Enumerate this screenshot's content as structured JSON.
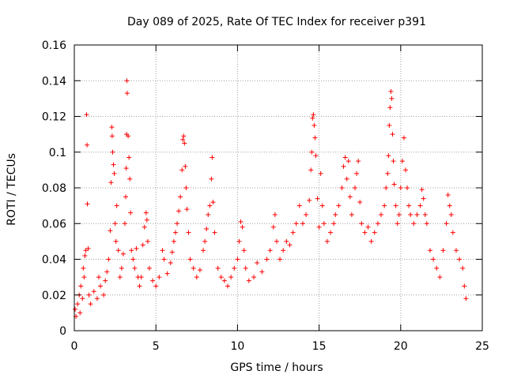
{
  "chart_data": {
    "type": "scatter",
    "title": "Day 089 of 2025, Rate Of TEC Index for receiver p391",
    "xlabel": "GPS time / hours",
    "ylabel": "ROTI / TECUs",
    "xlim": [
      0,
      25
    ],
    "ylim": [
      0,
      0.16
    ],
    "xticks": [
      0,
      5,
      10,
      15,
      20,
      25
    ],
    "yticks": [
      0,
      0.02,
      0.04,
      0.06,
      0.08,
      0.1,
      0.12,
      0.14,
      0.16
    ],
    "xtick_labels": [
      "0",
      "5",
      "10",
      "15",
      "20",
      "25"
    ],
    "ytick_labels": [
      "0",
      "0.02",
      "0.04",
      "0.06",
      "0.08",
      "0.1",
      "0.12",
      "0.14",
      "0.16"
    ],
    "grid": true,
    "marker": "+",
    "color": "#ff0000",
    "series": [
      {
        "points": [
          [
            0.05,
            0.012
          ],
          [
            0.1,
            0.008
          ],
          [
            0.2,
            0.015
          ],
          [
            0.3,
            0.02
          ],
          [
            0.35,
            0.01
          ],
          [
            0.4,
            0.025
          ],
          [
            0.5,
            0.018
          ],
          [
            0.55,
            0.035
          ],
          [
            0.6,
            0.03
          ],
          [
            0.65,
            0.042
          ],
          [
            0.7,
            0.045
          ],
          [
            0.75,
            0.121
          ],
          [
            0.78,
            0.104
          ],
          [
            0.8,
            0.071
          ],
          [
            0.85,
            0.046
          ],
          [
            0.9,
            0.02
          ],
          [
            1.0,
            0.015
          ],
          [
            1.2,
            0.022
          ],
          [
            1.4,
            0.018
          ],
          [
            1.5,
            0.03
          ],
          [
            1.6,
            0.025
          ],
          [
            1.8,
            0.02
          ],
          [
            1.9,
            0.028
          ],
          [
            2.0,
            0.033
          ],
          [
            2.1,
            0.04
          ],
          [
            2.2,
            0.056
          ],
          [
            2.25,
            0.083
          ],
          [
            2.3,
            0.114
          ],
          [
            2.32,
            0.109
          ],
          [
            2.35,
            0.1
          ],
          [
            2.4,
            0.093
          ],
          [
            2.45,
            0.088
          ],
          [
            2.5,
            0.06
          ],
          [
            2.55,
            0.05
          ],
          [
            2.6,
            0.07
          ],
          [
            2.7,
            0.045
          ],
          [
            2.8,
            0.03
          ],
          [
            2.9,
            0.035
          ],
          [
            3.0,
            0.043
          ],
          [
            3.1,
            0.06
          ],
          [
            3.15,
            0.075
          ],
          [
            3.18,
            0.091
          ],
          [
            3.2,
            0.11
          ],
          [
            3.22,
            0.14
          ],
          [
            3.24,
            0.133
          ],
          [
            3.3,
            0.109
          ],
          [
            3.35,
            0.097
          ],
          [
            3.4,
            0.085
          ],
          [
            3.45,
            0.066
          ],
          [
            3.5,
            0.045
          ],
          [
            3.6,
            0.04
          ],
          [
            3.7,
            0.035
          ],
          [
            3.8,
            0.046
          ],
          [
            3.9,
            0.03
          ],
          [
            4.0,
            0.025
          ],
          [
            4.1,
            0.03
          ],
          [
            4.2,
            0.048
          ],
          [
            4.3,
            0.058
          ],
          [
            4.4,
            0.066
          ],
          [
            4.45,
            0.062
          ],
          [
            4.5,
            0.05
          ],
          [
            4.6,
            0.035
          ],
          [
            4.8,
            0.028
          ],
          [
            5.0,
            0.025
          ],
          [
            5.2,
            0.03
          ],
          [
            5.4,
            0.045
          ],
          [
            5.5,
            0.04
          ],
          [
            5.7,
            0.032
          ],
          [
            5.9,
            0.038
          ],
          [
            6.0,
            0.044
          ],
          [
            6.1,
            0.05
          ],
          [
            6.2,
            0.055
          ],
          [
            6.3,
            0.06
          ],
          [
            6.4,
            0.067
          ],
          [
            6.5,
            0.075
          ],
          [
            6.6,
            0.09
          ],
          [
            6.65,
            0.107
          ],
          [
            6.7,
            0.109
          ],
          [
            6.75,
            0.105
          ],
          [
            6.8,
            0.092
          ],
          [
            6.85,
            0.08
          ],
          [
            6.9,
            0.068
          ],
          [
            7.0,
            0.055
          ],
          [
            7.1,
            0.04
          ],
          [
            7.3,
            0.035
          ],
          [
            7.5,
            0.03
          ],
          [
            7.7,
            0.034
          ],
          [
            7.9,
            0.045
          ],
          [
            8.0,
            0.05
          ],
          [
            8.1,
            0.057
          ],
          [
            8.2,
            0.065
          ],
          [
            8.3,
            0.07
          ],
          [
            8.4,
            0.085
          ],
          [
            8.45,
            0.097
          ],
          [
            8.5,
            0.072
          ],
          [
            8.6,
            0.055
          ],
          [
            8.8,
            0.035
          ],
          [
            9.0,
            0.03
          ],
          [
            9.2,
            0.028
          ],
          [
            9.4,
            0.025
          ],
          [
            9.6,
            0.03
          ],
          [
            9.8,
            0.035
          ],
          [
            10.0,
            0.04
          ],
          [
            10.1,
            0.05
          ],
          [
            10.2,
            0.061
          ],
          [
            10.3,
            0.058
          ],
          [
            10.4,
            0.045
          ],
          [
            10.5,
            0.035
          ],
          [
            10.7,
            0.028
          ],
          [
            11.0,
            0.03
          ],
          [
            11.2,
            0.038
          ],
          [
            11.5,
            0.033
          ],
          [
            11.8,
            0.04
          ],
          [
            12.0,
            0.045
          ],
          [
            12.2,
            0.058
          ],
          [
            12.3,
            0.065
          ],
          [
            12.4,
            0.05
          ],
          [
            12.6,
            0.04
          ],
          [
            12.8,
            0.045
          ],
          [
            13.0,
            0.05
          ],
          [
            13.2,
            0.048
          ],
          [
            13.4,
            0.055
          ],
          [
            13.6,
            0.06
          ],
          [
            13.8,
            0.07
          ],
          [
            14.0,
            0.06
          ],
          [
            14.2,
            0.065
          ],
          [
            14.4,
            0.073
          ],
          [
            14.5,
            0.09
          ],
          [
            14.55,
            0.1
          ],
          [
            14.6,
            0.119
          ],
          [
            14.65,
            0.121
          ],
          [
            14.7,
            0.115
          ],
          [
            14.75,
            0.108
          ],
          [
            14.8,
            0.098
          ],
          [
            14.9,
            0.074
          ],
          [
            15.0,
            0.058
          ],
          [
            15.1,
            0.088
          ],
          [
            15.2,
            0.07
          ],
          [
            15.3,
            0.06
          ],
          [
            15.5,
            0.05
          ],
          [
            15.7,
            0.055
          ],
          [
            15.9,
            0.06
          ],
          [
            16.0,
            0.065
          ],
          [
            16.2,
            0.07
          ],
          [
            16.4,
            0.08
          ],
          [
            16.5,
            0.092
          ],
          [
            16.6,
            0.097
          ],
          [
            16.7,
            0.085
          ],
          [
            16.8,
            0.095
          ],
          [
            16.9,
            0.075
          ],
          [
            17.0,
            0.065
          ],
          [
            17.2,
            0.08
          ],
          [
            17.3,
            0.088
          ],
          [
            17.4,
            0.095
          ],
          [
            17.5,
            0.072
          ],
          [
            17.6,
            0.06
          ],
          [
            17.8,
            0.055
          ],
          [
            18.0,
            0.058
          ],
          [
            18.2,
            0.05
          ],
          [
            18.4,
            0.055
          ],
          [
            18.6,
            0.06
          ],
          [
            18.8,
            0.065
          ],
          [
            19.0,
            0.07
          ],
          [
            19.1,
            0.08
          ],
          [
            19.2,
            0.088
          ],
          [
            19.25,
            0.098
          ],
          [
            19.3,
            0.115
          ],
          [
            19.35,
            0.125
          ],
          [
            19.4,
            0.134
          ],
          [
            19.45,
            0.13
          ],
          [
            19.5,
            0.11
          ],
          [
            19.55,
            0.095
          ],
          [
            19.6,
            0.082
          ],
          [
            19.7,
            0.07
          ],
          [
            19.8,
            0.06
          ],
          [
            19.9,
            0.065
          ],
          [
            20.0,
            0.08
          ],
          [
            20.1,
            0.095
          ],
          [
            20.2,
            0.108
          ],
          [
            20.3,
            0.09
          ],
          [
            20.4,
            0.08
          ],
          [
            20.5,
            0.07
          ],
          [
            20.6,
            0.065
          ],
          [
            20.8,
            0.06
          ],
          [
            21.0,
            0.065
          ],
          [
            21.2,
            0.07
          ],
          [
            21.3,
            0.079
          ],
          [
            21.4,
            0.074
          ],
          [
            21.5,
            0.065
          ],
          [
            21.6,
            0.06
          ],
          [
            21.8,
            0.045
          ],
          [
            22.0,
            0.04
          ],
          [
            22.2,
            0.035
          ],
          [
            22.4,
            0.03
          ],
          [
            22.6,
            0.045
          ],
          [
            22.8,
            0.06
          ],
          [
            22.9,
            0.076
          ],
          [
            23.0,
            0.07
          ],
          [
            23.1,
            0.065
          ],
          [
            23.2,
            0.055
          ],
          [
            23.4,
            0.045
          ],
          [
            23.6,
            0.04
          ],
          [
            23.8,
            0.035
          ],
          [
            23.9,
            0.025
          ],
          [
            24.0,
            0.018
          ]
        ]
      }
    ]
  }
}
